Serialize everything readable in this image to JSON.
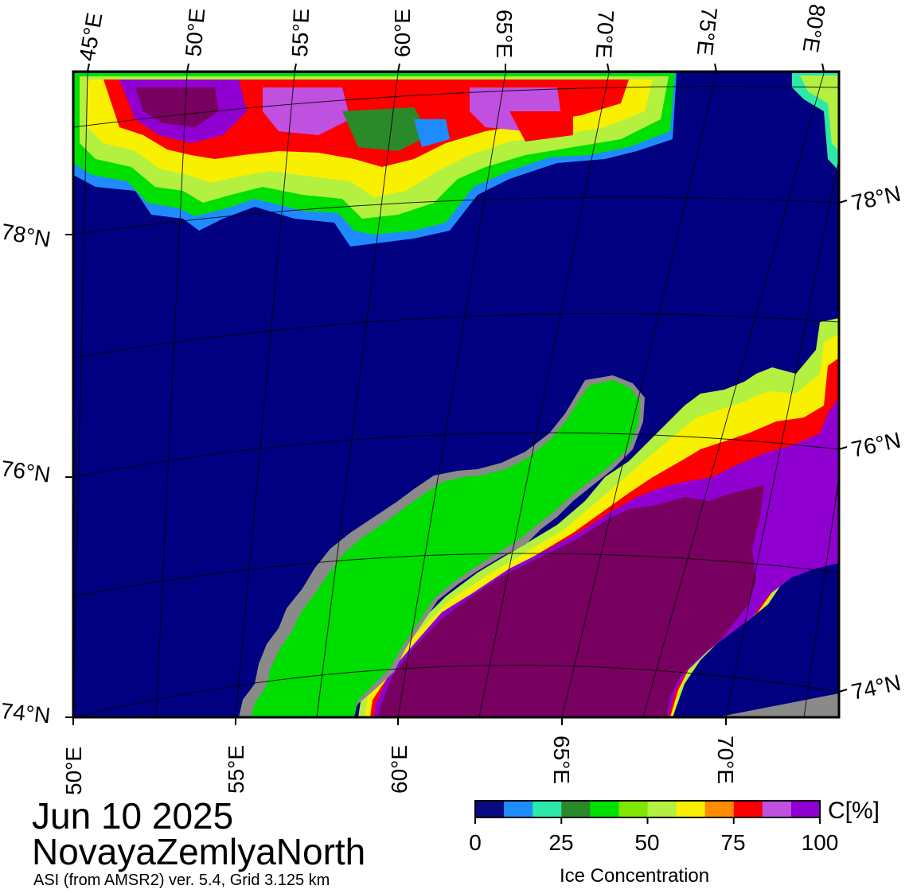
{
  "map": {
    "date": "Jun 10 2025",
    "region": "NovayaZemlyaNorth",
    "source": "ASI (from AMSR2) ver. 5.4,  Grid 3.125 km",
    "top_lon_labels": [
      "45°E",
      "50°E",
      "55°E",
      "60°E",
      "65°E",
      "70°E",
      "75°E",
      "80°E"
    ],
    "bottom_lon_labels": [
      "50°E",
      "55°E",
      "60°E",
      "65°E",
      "70°E"
    ],
    "left_lat_labels": [
      "78°N",
      "76°N",
      "74°N"
    ],
    "right_lat_labels": [
      "78°N",
      "76°N",
      "74°N"
    ]
  },
  "colorbar": {
    "title": "Ice Concentration",
    "unit": "C[%]",
    "ticks": [
      "0",
      "25",
      "50",
      "75",
      "100"
    ],
    "colors": [
      "#0a0a80",
      "#1e8cff",
      "#2ee8a8",
      "#2a8a2a",
      "#00e000",
      "#7ee800",
      "#b4f040",
      "#f8f000",
      "#ff8c00",
      "#ff0000",
      "#c050e0",
      "#9000d0"
    ]
  },
  "colors": {
    "open_water": "#000080",
    "land": "#00dd00",
    "coast": "#8a8a8a",
    "full_ice": "#770060",
    "ice_edge_purple": "#9a00d0"
  }
}
